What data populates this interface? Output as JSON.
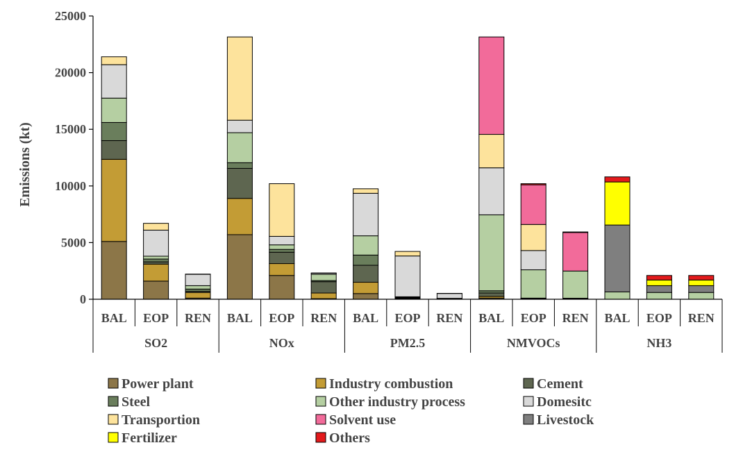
{
  "chart_data": {
    "type": "bar",
    "stacked": true,
    "ylabel": "Emissions (kt)",
    "ylim": [
      0,
      25000
    ],
    "yticks": [
      0,
      5000,
      10000,
      15000,
      20000,
      25000
    ],
    "grid": false,
    "legend_position": "bottom",
    "groups": [
      {
        "name": "SO2",
        "categories": [
          "BAL",
          "EOP",
          "REN"
        ]
      },
      {
        "name": "NOx",
        "categories": [
          "BAL",
          "EOP",
          "REN"
        ]
      },
      {
        "name": "PM2.5",
        "categories": [
          "BAL",
          "EOP",
          "REN"
        ]
      },
      {
        "name": "NMVOCs",
        "categories": [
          "BAL",
          "EOP",
          "REN"
        ]
      },
      {
        "name": "NH3",
        "categories": [
          "BAL",
          "EOP",
          "REN"
        ]
      }
    ],
    "series": [
      {
        "name": "Power plant",
        "color": "#8c7648",
        "values": [
          5100,
          1600,
          100,
          5700,
          2100,
          50,
          500,
          50,
          20,
          100,
          30,
          20,
          0,
          0,
          0
        ]
      },
      {
        "name": "Industry combustion",
        "color": "#c39c35",
        "values": [
          7250,
          1500,
          500,
          3200,
          1050,
          500,
          1000,
          50,
          20,
          150,
          30,
          30,
          0,
          0,
          0
        ]
      },
      {
        "name": "Cement",
        "color": "#5e6650",
        "values": [
          1650,
          200,
          100,
          2650,
          1000,
          1000,
          1500,
          50,
          10,
          300,
          20,
          20,
          0,
          0,
          0
        ]
      },
      {
        "name": "Steel",
        "color": "#6a7e5c",
        "values": [
          1600,
          250,
          200,
          500,
          250,
          100,
          900,
          20,
          10,
          200,
          20,
          20,
          0,
          0,
          0
        ]
      },
      {
        "name": "Other industry process",
        "color": "#b5cfa2",
        "values": [
          2150,
          250,
          300,
          2650,
          400,
          550,
          1700,
          50,
          20,
          6700,
          2500,
          2400,
          650,
          600,
          600
        ]
      },
      {
        "name": "Domesitc",
        "color": "#d9d9d9",
        "values": [
          2950,
          2300,
          1000,
          1100,
          750,
          100,
          3750,
          3600,
          430,
          4150,
          1700,
          0,
          0,
          0,
          0
        ]
      },
      {
        "name": "Transportion",
        "color": "#fde39c",
        "values": [
          700,
          600,
          20,
          7350,
          4650,
          20,
          400,
          400,
          10,
          2950,
          2300,
          0,
          0,
          0,
          0
        ]
      },
      {
        "name": "Solvent use",
        "color": "#f26b9a",
        "values": [
          0,
          0,
          0,
          0,
          0,
          0,
          0,
          0,
          0,
          8600,
          3500,
          3400,
          0,
          0,
          0
        ]
      },
      {
        "name": "Livestock",
        "color": "#7f7f7f",
        "values": [
          0,
          0,
          0,
          0,
          0,
          0,
          0,
          0,
          0,
          0,
          0,
          0,
          5900,
          600,
          600
        ]
      },
      {
        "name": "Fertilizer",
        "color": "#ffff00",
        "values": [
          0,
          0,
          0,
          0,
          0,
          0,
          0,
          0,
          0,
          0,
          0,
          0,
          3800,
          500,
          500
        ]
      },
      {
        "name": "Others",
        "color": "#e31a1c",
        "values": [
          0,
          0,
          0,
          0,
          0,
          0,
          0,
          0,
          0,
          0,
          100,
          50,
          450,
          400,
          400
        ]
      }
    ]
  }
}
